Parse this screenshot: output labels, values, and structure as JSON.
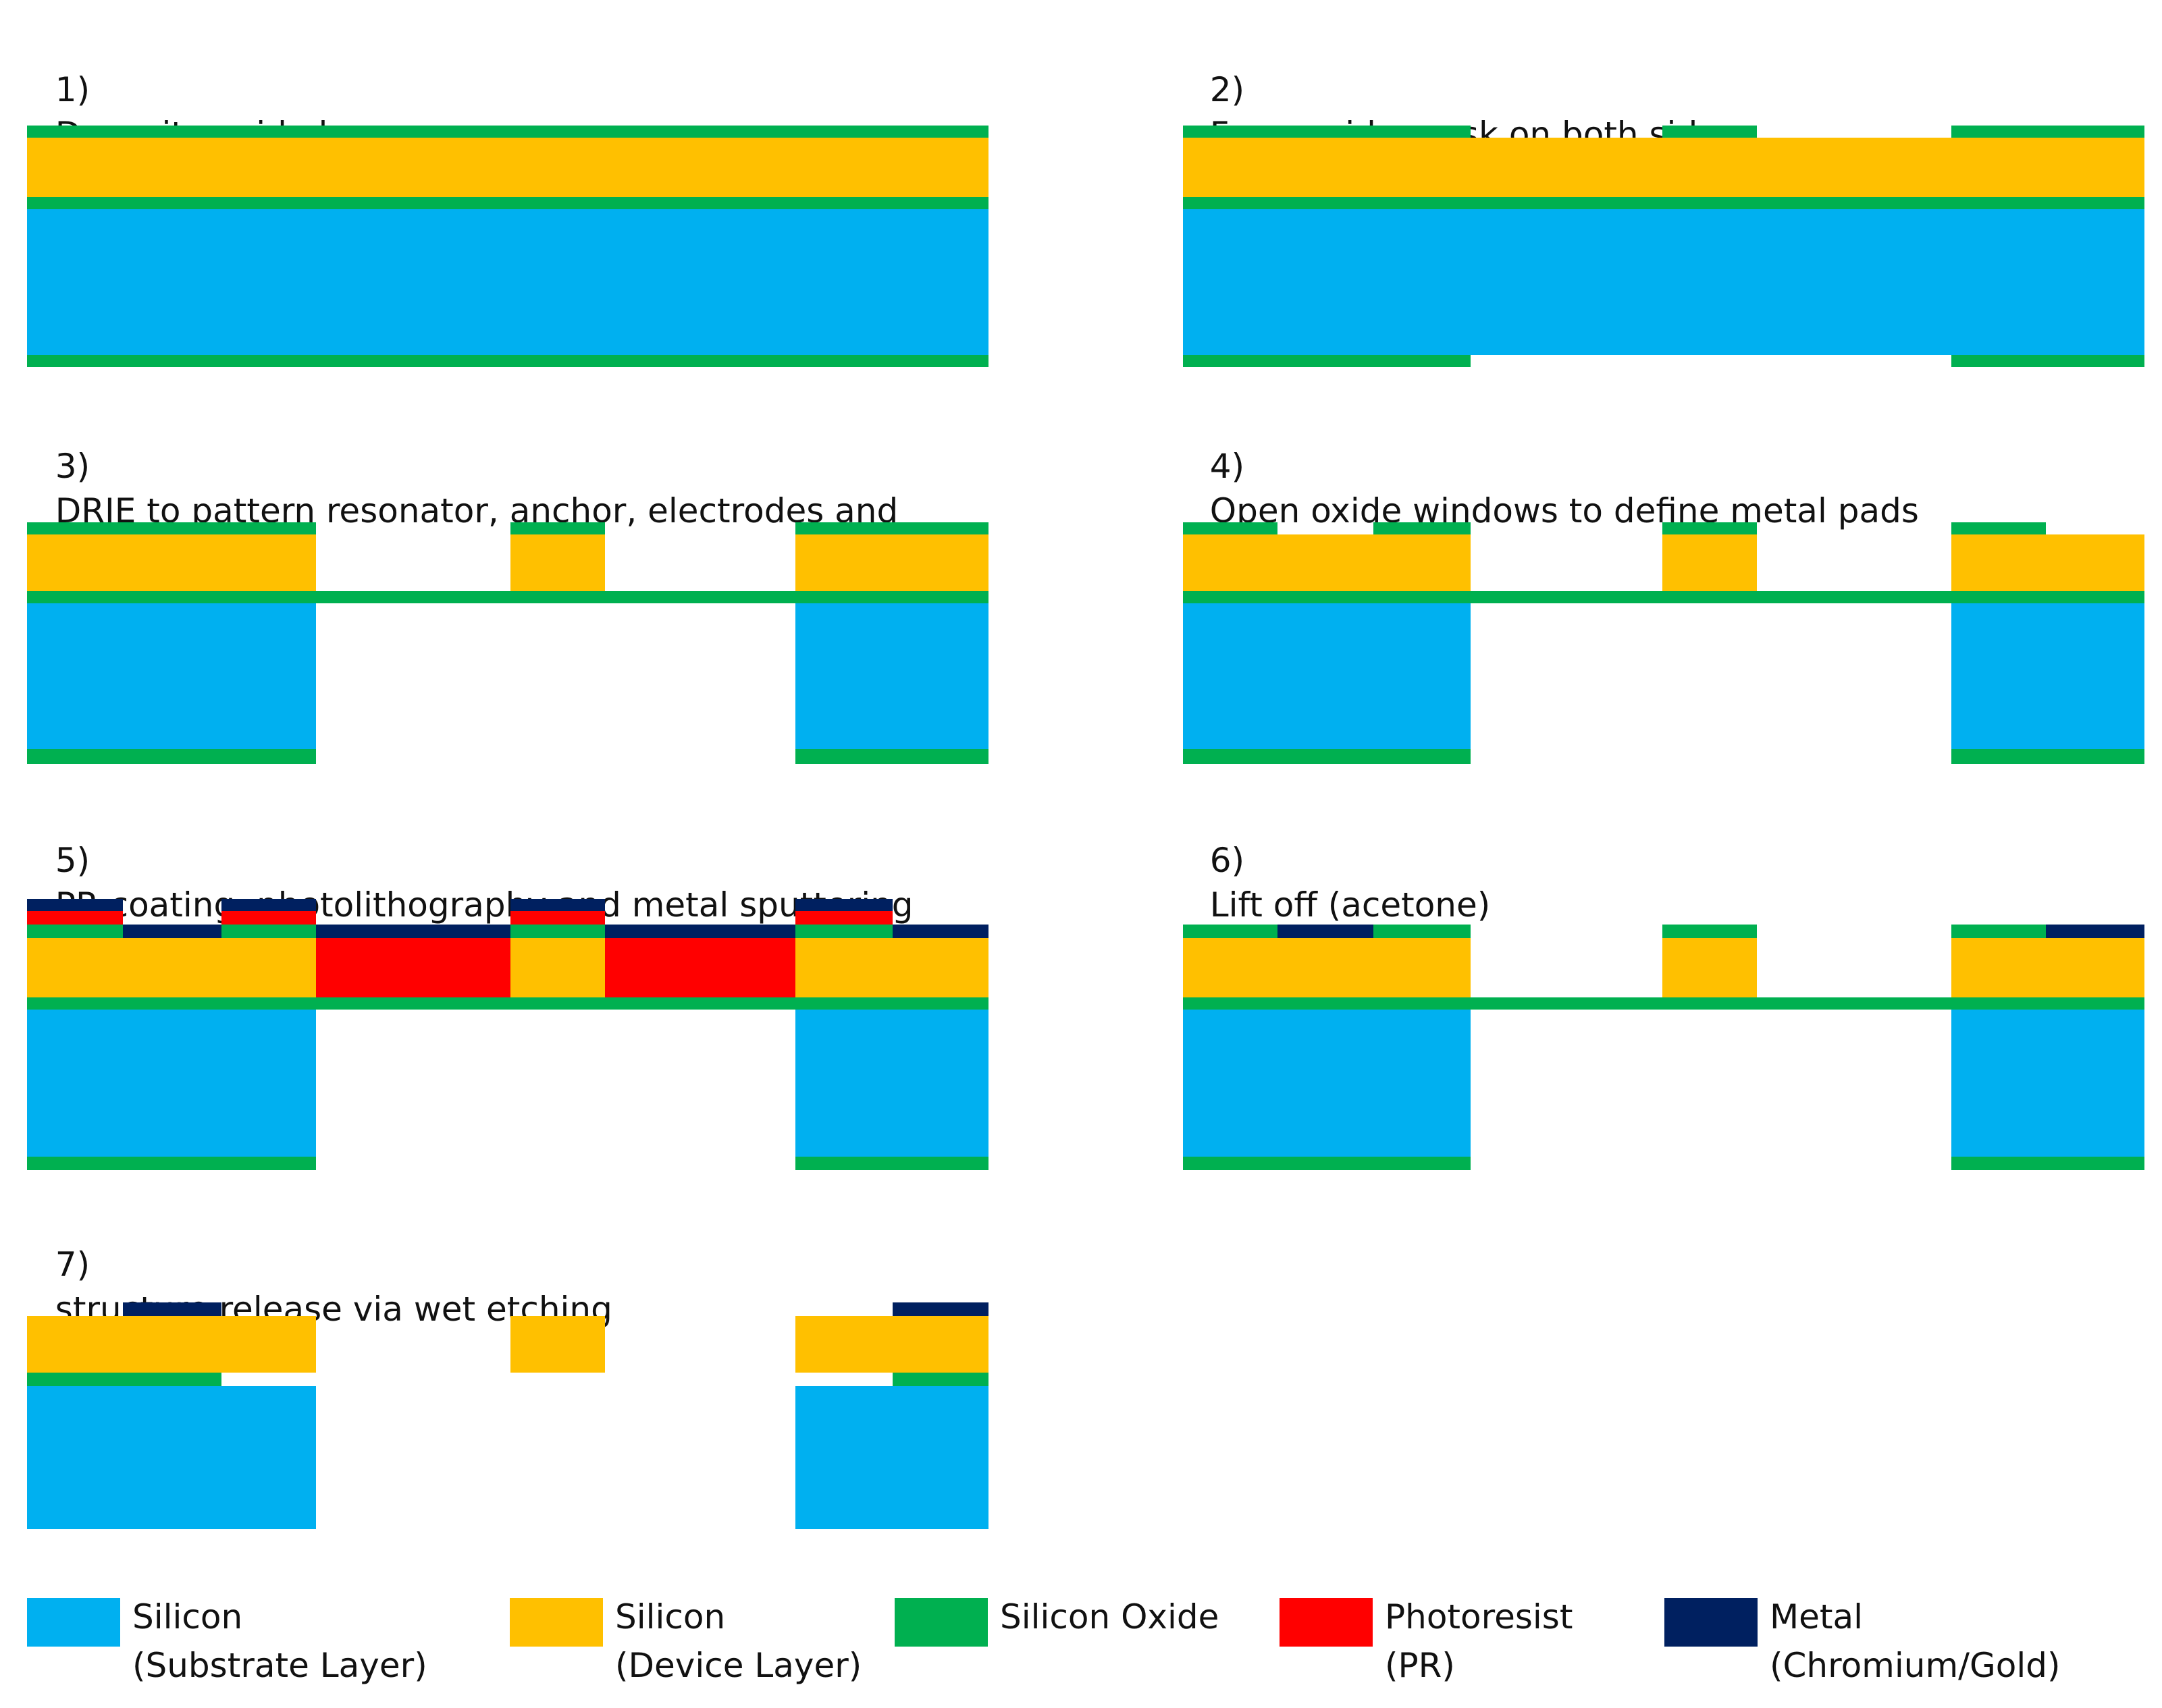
{
  "colors": {
    "substrate": "#00B0F0",
    "device": "#FFC000",
    "oxide": "#00B050",
    "photoresist": "#FF0000",
    "metal": "#002060"
  },
  "steps": [
    {
      "num": "1)",
      "title": "Deposit   oxide layer"
    },
    {
      "num": "2)",
      "title": "Form oxide mask on both side"
    },
    {
      "num": "3)",
      "title": "DRIE to pattern resonator, anchor, electrodes and\ncavity"
    },
    {
      "num": "4)",
      "title": "Open oxide windows to define metal pads"
    },
    {
      "num": "5)",
      "title": "PR coating, photolithography and metal sputtering"
    },
    {
      "num": "6)",
      "title": "Lift off (acetone)"
    },
    {
      "num": "7)",
      "title": "structure release via wet etching"
    }
  ],
  "legend": [
    {
      "key": "substrate",
      "line1": "Silicon",
      "line2": "(Substrate Layer)"
    },
    {
      "key": "device",
      "line1": "Silicon",
      "line2": "(Device Layer)"
    },
    {
      "key": "oxide",
      "line1": "Silicon Oxide",
      "line2": ""
    },
    {
      "key": "photoresist",
      "line1": "Photoresist",
      "line2": "(PR)"
    },
    {
      "key": "metal",
      "line1": "Metal",
      "line2": "(Chromium/Gold)"
    }
  ]
}
